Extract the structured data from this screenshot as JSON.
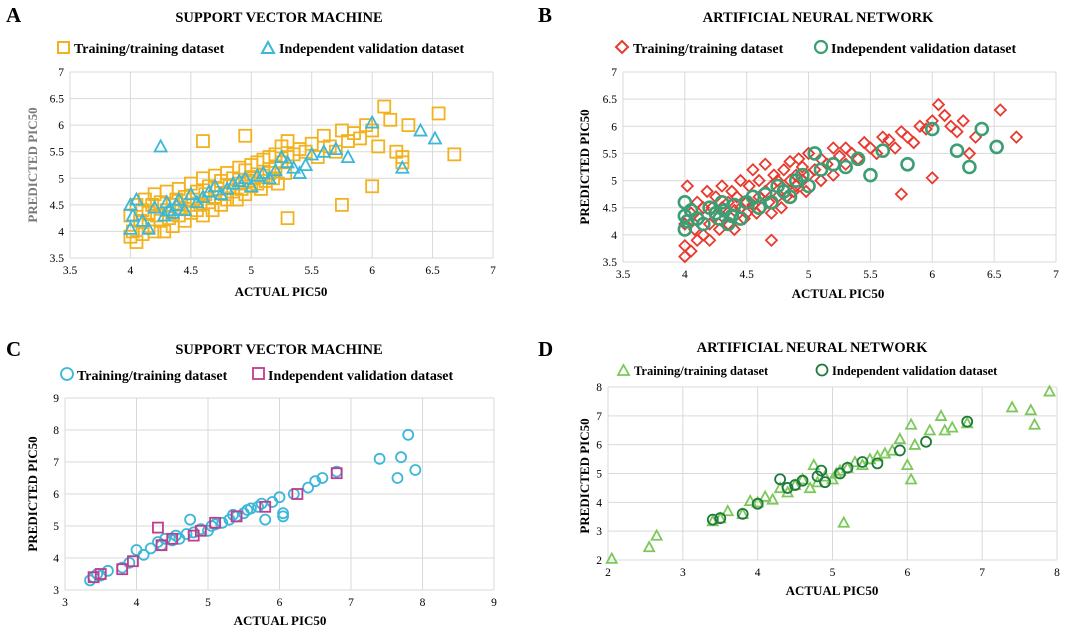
{
  "figure": {
    "panel_letters": [
      "A",
      "B",
      "C",
      "D"
    ]
  },
  "colors": {
    "yellow": "#F2B21E",
    "cyan": "#3BB7D9",
    "red": "#E83A2F",
    "green": "#3C9E74",
    "teal_light": "#5FC2E6",
    "magenta": "#C13B8E",
    "lime": "#7CC85A",
    "darkgreen": "#1E7A3C"
  },
  "chart_data": [
    {
      "id": "A",
      "type": "scatter",
      "title": "SUPPORT VECTOR MACHINE",
      "xlabel": "ACTUAL PIC50",
      "ylabel": "PREDICTED PIC50",
      "xlim": [
        3.5,
        7
      ],
      "ylim": [
        3.5,
        7
      ],
      "xticks": [
        "3.5",
        "4",
        "4.5",
        "5",
        "5.5",
        "6",
        "6.5",
        "7"
      ],
      "yticks": [
        "3.5",
        "4",
        "4.5",
        "5",
        "5.5",
        "6",
        "6.5",
        "7"
      ],
      "series": [
        {
          "name": "Training/training dataset",
          "marker": "square",
          "color": "#F2B21E",
          "x": [
            4.0,
            4.0,
            4.02,
            4.05,
            4.05,
            4.08,
            4.1,
            4.1,
            4.12,
            4.15,
            4.15,
            4.18,
            4.2,
            4.2,
            4.22,
            4.25,
            4.25,
            4.28,
            4.3,
            4.3,
            4.32,
            4.35,
            4.35,
            4.38,
            4.4,
            4.4,
            4.42,
            4.45,
            4.45,
            4.48,
            4.5,
            4.5,
            4.52,
            4.55,
            4.55,
            4.58,
            4.6,
            4.6,
            4.62,
            4.65,
            4.65,
            4.68,
            4.7,
            4.7,
            4.72,
            4.75,
            4.75,
            4.78,
            4.8,
            4.8,
            4.82,
            4.85,
            4.85,
            4.88,
            4.9,
            4.9,
            4.92,
            4.95,
            4.95,
            4.98,
            5.0,
            5.0,
            5.02,
            5.05,
            5.05,
            5.08,
            5.1,
            5.1,
            5.12,
            5.15,
            5.15,
            5.18,
            5.2,
            5.2,
            5.22,
            5.25,
            5.25,
            5.28,
            5.3,
            5.3,
            5.35,
            5.4,
            5.45,
            5.5,
            5.55,
            5.6,
            5.65,
            5.7,
            5.75,
            5.8,
            5.85,
            5.9,
            5.95,
            6.0,
            6.05,
            6.1,
            6.15,
            6.2,
            6.25,
            6.3,
            6.55,
            6.68,
            4.6,
            4.95,
            5.3,
            5.75,
            6.0,
            6.25
          ],
          "y": [
            3.9,
            4.3,
            4.0,
            4.5,
            3.8,
            4.2,
            4.4,
            3.95,
            4.6,
            4.1,
            4.35,
            4.5,
            4.0,
            4.7,
            4.3,
            4.2,
            4.55,
            4.0,
            4.4,
            4.75,
            4.25,
            4.5,
            4.1,
            4.6,
            4.3,
            4.8,
            4.45,
            4.2,
            4.65,
            4.5,
            4.35,
            4.9,
            4.6,
            4.4,
            4.75,
            4.5,
            4.3,
            5.0,
            4.7,
            4.55,
            4.85,
            4.4,
            4.65,
            5.05,
            4.8,
            4.5,
            4.95,
            4.7,
            4.6,
            5.1,
            4.85,
            4.75,
            5.0,
            4.6,
            4.9,
            5.2,
            4.8,
            4.7,
            5.15,
            4.95,
            4.85,
            5.25,
            5.0,
            4.9,
            5.3,
            4.8,
            5.05,
            5.35,
            4.95,
            5.1,
            5.4,
            5.0,
            5.2,
            5.45,
            4.9,
            5.3,
            5.6,
            5.1,
            5.4,
            5.7,
            5.45,
            5.55,
            5.5,
            5.65,
            5.4,
            5.8,
            5.6,
            5.5,
            5.9,
            5.7,
            5.85,
            5.75,
            6.0,
            5.9,
            5.6,
            6.35,
            6.1,
            5.5,
            5.3,
            6.0,
            6.22,
            5.45,
            5.7,
            5.8,
            4.25,
            4.5,
            4.85,
            5.4
          ]
        },
        {
          "name": "Independent validation dataset",
          "marker": "triangle",
          "color": "#3BB7D9",
          "x": [
            4.0,
            4.0,
            4.02,
            4.05,
            4.1,
            4.15,
            4.2,
            4.25,
            4.28,
            4.3,
            4.32,
            4.35,
            4.38,
            4.4,
            4.45,
            4.5,
            4.55,
            4.6,
            4.65,
            4.7,
            4.75,
            4.8,
            4.85,
            4.9,
            4.95,
            5.0,
            5.05,
            5.1,
            5.15,
            5.2,
            5.25,
            5.3,
            5.35,
            5.4,
            5.45,
            5.5,
            5.6,
            5.7,
            5.8,
            6.0,
            6.25,
            6.4,
            6.52
          ],
          "y": [
            4.05,
            4.5,
            4.3,
            4.6,
            4.2,
            4.05,
            4.45,
            5.6,
            4.3,
            4.55,
            4.4,
            4.35,
            4.5,
            4.6,
            4.4,
            4.7,
            4.55,
            4.65,
            4.75,
            4.85,
            4.7,
            4.8,
            4.9,
            4.95,
            5.0,
            4.85,
            5.05,
            5.1,
            5.0,
            5.15,
            5.4,
            5.3,
            5.2,
            5.1,
            5.25,
            5.45,
            5.5,
            5.55,
            5.4,
            6.05,
            5.2,
            5.9,
            5.75
          ]
        }
      ]
    },
    {
      "id": "B",
      "type": "scatter",
      "title": "ARTIFICIAL NEURAL NETWORK",
      "xlabel": "ACTUAL PIC50",
      "ylabel": "PREDICTED PIC50",
      "xlim": [
        3.5,
        7
      ],
      "ylim": [
        3.5,
        7
      ],
      "xticks": [
        "3.5",
        "4",
        "4.5",
        "5",
        "5.5",
        "6",
        "6.5",
        "7"
      ],
      "yticks": [
        "3.5",
        "4",
        "4.5",
        "5",
        "5.5",
        "6",
        "6.5",
        "7"
      ],
      "series": [
        {
          "name": "Training/training dataset",
          "marker": "diamond",
          "color": "#E83A2F",
          "x": [
            4.0,
            4.0,
            4.0,
            4.02,
            4.05,
            4.05,
            4.08,
            4.1,
            4.1,
            4.12,
            4.15,
            4.15,
            4.18,
            4.2,
            4.2,
            4.22,
            4.25,
            4.25,
            4.28,
            4.3,
            4.3,
            4.32,
            4.35,
            4.35,
            4.38,
            4.4,
            4.4,
            4.42,
            4.45,
            4.45,
            4.48,
            4.5,
            4.5,
            4.52,
            4.55,
            4.55,
            4.58,
            4.6,
            4.6,
            4.62,
            4.65,
            4.65,
            4.68,
            4.7,
            4.7,
            4.72,
            4.75,
            4.75,
            4.78,
            4.8,
            4.8,
            4.82,
            4.85,
            4.85,
            4.88,
            4.9,
            4.9,
            4.92,
            4.95,
            4.95,
            4.98,
            5.0,
            5.0,
            5.05,
            5.1,
            5.1,
            5.15,
            5.2,
            5.2,
            5.25,
            5.3,
            5.3,
            5.35,
            5.4,
            5.45,
            5.5,
            5.55,
            5.6,
            5.65,
            5.7,
            5.75,
            5.8,
            5.85,
            5.9,
            5.95,
            6.0,
            6.05,
            6.1,
            6.15,
            6.2,
            6.25,
            6.3,
            6.35,
            6.55,
            6.68,
            4.7,
            5.75,
            6.0
          ],
          "y": [
            3.6,
            4.2,
            3.8,
            4.9,
            4.4,
            3.7,
            4.1,
            4.6,
            3.9,
            4.3,
            4.5,
            4.0,
            4.8,
            4.2,
            3.9,
            4.5,
            4.35,
            4.7,
            4.1,
            4.5,
            4.9,
            4.3,
            4.6,
            4.2,
            4.8,
            4.45,
            4.1,
            4.7,
            4.5,
            5.0,
            4.3,
            4.6,
            4.4,
            4.9,
            4.55,
            5.2,
            4.4,
            4.7,
            5.0,
            4.5,
            4.8,
            5.3,
            4.6,
            4.9,
            4.4,
            5.1,
            4.7,
            5.0,
            4.5,
            4.85,
            5.2,
            4.7,
            5.0,
            5.35,
            4.8,
            5.1,
            4.9,
            5.4,
            5.0,
            5.25,
            4.8,
            5.1,
            5.5,
            5.2,
            5.0,
            5.4,
            5.3,
            5.6,
            5.1,
            5.45,
            5.3,
            5.6,
            5.5,
            5.4,
            5.7,
            5.6,
            5.5,
            5.8,
            5.75,
            5.6,
            5.9,
            5.8,
            5.7,
            6.0,
            5.95,
            6.1,
            6.4,
            6.2,
            6.0,
            5.9,
            6.1,
            5.5,
            5.8,
            6.3,
            5.8,
            3.9,
            4.75,
            5.05
          ]
        },
        {
          "name": "Independent validation dataset",
          "marker": "circle",
          "color": "#3C9E74",
          "x": [
            4.0,
            4.0,
            4.0,
            4.02,
            4.05,
            4.1,
            4.15,
            4.2,
            4.25,
            4.28,
            4.3,
            4.32,
            4.35,
            4.38,
            4.4,
            4.45,
            4.5,
            4.55,
            4.6,
            4.65,
            4.7,
            4.75,
            4.8,
            4.85,
            4.9,
            4.95,
            5.0,
            5.05,
            5.1,
            5.2,
            5.3,
            5.4,
            5.5,
            5.6,
            5.8,
            6.0,
            6.2,
            6.3,
            6.4,
            6.52
          ],
          "y": [
            4.1,
            4.35,
            4.6,
            4.25,
            4.45,
            4.3,
            4.2,
            4.5,
            4.4,
            4.3,
            4.6,
            4.45,
            4.2,
            4.35,
            4.55,
            4.3,
            4.6,
            4.7,
            4.5,
            4.75,
            4.6,
            4.9,
            4.8,
            4.7,
            5.0,
            5.1,
            4.9,
            5.5,
            5.2,
            5.3,
            5.25,
            5.4,
            5.1,
            5.55,
            5.3,
            5.95,
            5.55,
            5.25,
            5.95,
            5.62
          ]
        }
      ]
    },
    {
      "id": "C",
      "type": "scatter",
      "title": "SUPPORT VECTOR MACHINE",
      "xlabel": "ACTUAL PIC50",
      "ylabel": "PREDICTED PIC50",
      "xlim": [
        3,
        9
      ],
      "ylim": [
        3,
        9
      ],
      "xticks": [
        "3",
        "4",
        "5",
        "6",
        "7",
        "8",
        "9"
      ],
      "yticks": [
        "3",
        "4",
        "5",
        "6",
        "7",
        "8",
        "9"
      ],
      "series": [
        {
          "name": "Training/training dataset",
          "marker": "circle",
          "color": "#3BB7D9",
          "x": [
            3.35,
            3.4,
            3.45,
            3.5,
            3.6,
            3.8,
            3.9,
            4.0,
            4.1,
            4.2,
            4.3,
            4.35,
            4.4,
            4.5,
            4.55,
            4.6,
            4.7,
            4.75,
            4.8,
            4.9,
            5.0,
            5.05,
            5.1,
            5.2,
            5.3,
            5.35,
            5.4,
            5.5,
            5.55,
            5.6,
            5.7,
            5.75,
            5.8,
            5.9,
            6.0,
            6.05,
            6.05,
            6.2,
            6.4,
            6.5,
            6.6,
            6.8,
            7.4,
            7.65,
            7.7,
            7.8,
            7.9
          ],
          "y": [
            3.3,
            3.4,
            3.5,
            3.45,
            3.6,
            3.7,
            3.85,
            4.25,
            4.1,
            4.3,
            4.5,
            4.4,
            4.6,
            4.55,
            4.7,
            4.6,
            4.75,
            5.2,
            4.8,
            4.9,
            4.85,
            5.0,
            5.05,
            5.1,
            5.2,
            5.35,
            5.3,
            5.4,
            5.5,
            5.55,
            5.6,
            5.7,
            5.2,
            5.75,
            5.9,
            5.3,
            5.4,
            6.0,
            6.2,
            6.4,
            6.5,
            6.7,
            7.1,
            6.5,
            7.15,
            7.85,
            6.75
          ]
        },
        {
          "name": "Independent validation dataset",
          "marker": "square",
          "color": "#C13B8E",
          "x": [
            3.4,
            3.5,
            3.8,
            3.95,
            4.3,
            4.35,
            4.5,
            4.8,
            4.9,
            5.1,
            5.4,
            5.8,
            6.25,
            6.8
          ],
          "y": [
            3.4,
            3.5,
            3.65,
            3.9,
            4.95,
            4.4,
            4.6,
            4.7,
            4.85,
            5.1,
            5.3,
            5.6,
            6.0,
            6.65
          ]
        }
      ]
    },
    {
      "id": "D",
      "type": "scatter",
      "title": "ARTIFICIAL NEURAL NETWORK",
      "xlabel": "ACTUAL PIC50",
      "ylabel": "PREDICTED PIC50",
      "xlim": [
        2,
        8
      ],
      "ylim": [
        2,
        8
      ],
      "xticks": [
        "2",
        "3",
        "4",
        "5",
        "6",
        "7",
        "8"
      ],
      "yticks": [
        "2",
        "3",
        "4",
        "5",
        "6",
        "7",
        "8"
      ],
      "series": [
        {
          "name": "Training/training dataset",
          "marker": "triangle",
          "color": "#7CC85A",
          "x": [
            2.05,
            2.55,
            2.65,
            3.4,
            3.5,
            3.6,
            3.8,
            3.9,
            4.0,
            4.1,
            4.2,
            4.3,
            4.4,
            4.5,
            4.6,
            4.7,
            4.75,
            4.8,
            4.9,
            5.0,
            5.05,
            5.1,
            5.15,
            5.2,
            5.3,
            5.4,
            5.5,
            5.6,
            5.7,
            5.8,
            5.9,
            6.0,
            6.05,
            6.05,
            6.1,
            6.3,
            6.45,
            6.5,
            6.6,
            6.8,
            7.4,
            7.65,
            7.7,
            7.9
          ],
          "y": [
            2.05,
            2.45,
            2.85,
            3.35,
            3.45,
            3.7,
            3.6,
            4.05,
            4.0,
            4.2,
            4.1,
            4.5,
            4.35,
            4.6,
            4.8,
            4.5,
            5.3,
            4.7,
            4.9,
            4.8,
            5.0,
            5.1,
            3.3,
            5.2,
            5.4,
            5.3,
            5.5,
            5.6,
            5.7,
            5.8,
            6.2,
            5.3,
            6.7,
            4.8,
            6.0,
            6.5,
            7.0,
            6.5,
            6.6,
            6.75,
            7.3,
            7.2,
            6.7,
            7.85
          ]
        },
        {
          "name": "Independent validation dataset",
          "marker": "circle",
          "color": "#1E7A3C",
          "x": [
            3.4,
            3.5,
            3.8,
            4.0,
            4.3,
            4.4,
            4.5,
            4.6,
            4.8,
            4.85,
            4.9,
            5.1,
            5.2,
            5.4,
            5.6,
            5.9,
            6.25,
            6.8
          ],
          "y": [
            3.4,
            3.45,
            3.6,
            3.95,
            4.8,
            4.5,
            4.6,
            4.75,
            4.9,
            5.1,
            4.7,
            5.0,
            5.2,
            5.4,
            5.35,
            5.8,
            6.1,
            6.8
          ]
        }
      ]
    }
  ]
}
